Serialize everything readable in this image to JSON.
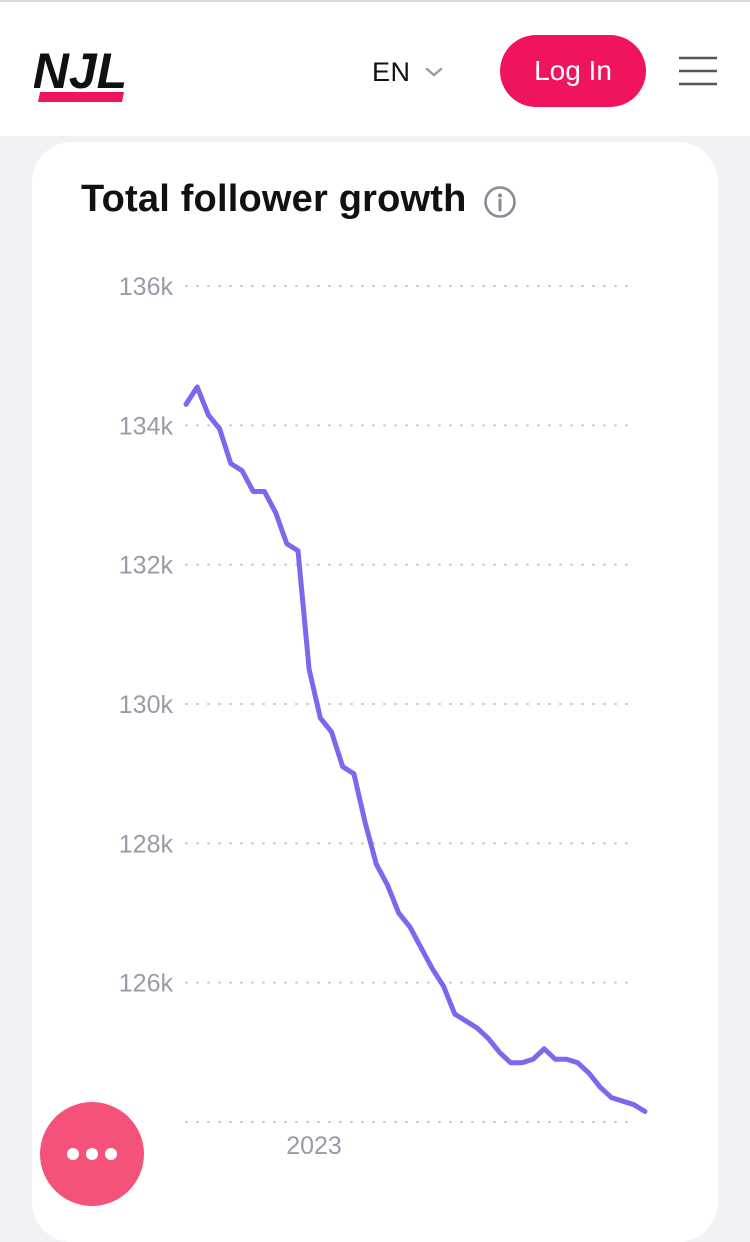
{
  "header": {
    "logo_text": "NJL",
    "language": "EN",
    "login_label": "Log In",
    "colors": {
      "brand": "#f0145e",
      "text": "#111111"
    }
  },
  "card": {
    "title": "Total follower growth",
    "info_icon": "info-icon"
  },
  "chart_data": {
    "type": "line",
    "title": "Total follower growth",
    "xlabel": "",
    "ylabel": "",
    "ylim": [
      124000,
      136000
    ],
    "y_ticks": [
      "136k",
      "134k",
      "132k",
      "130k",
      "128k",
      "126k"
    ],
    "x_tick_labels": [
      "2023"
    ],
    "grid": true,
    "line_color": "#7b68ee",
    "series": [
      {
        "values": [
          134300,
          134550,
          134150,
          133950,
          133450,
          133350,
          133050,
          133050,
          132750,
          132300,
          132200,
          130500,
          129800,
          129600,
          129100,
          129000,
          128300,
          127700,
          127400,
          127000,
          126800,
          126500,
          126200,
          125950,
          125550,
          125450,
          125350,
          125200,
          125000,
          124850,
          124850,
          124900,
          125050,
          124900,
          124900,
          124850,
          124700,
          124500,
          124350,
          124300,
          124250,
          124150
        ]
      }
    ]
  },
  "chat_button": {
    "icon": "more-dots-icon"
  }
}
